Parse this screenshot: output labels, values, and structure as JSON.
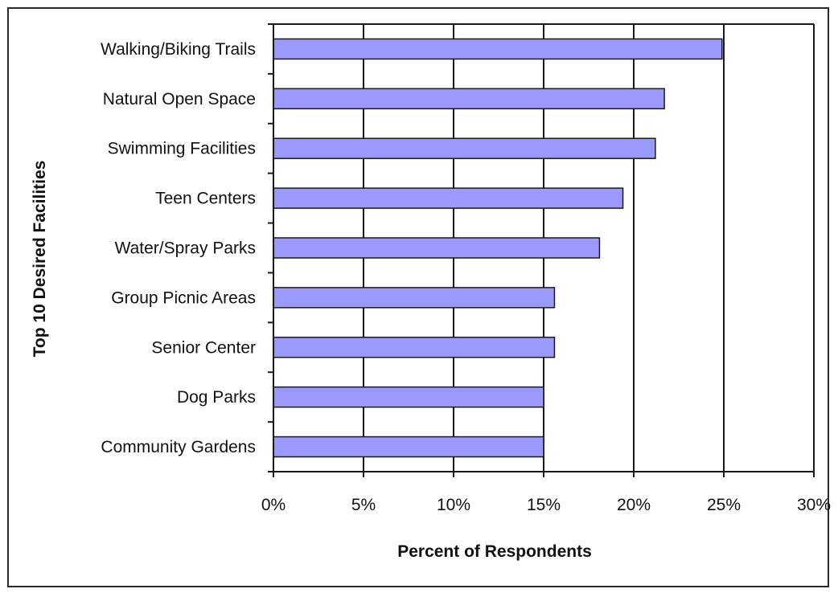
{
  "chart_data": {
    "type": "bar",
    "orientation": "horizontal",
    "categories": [
      "Walking/Biking Trails",
      "Natural Open Space",
      "Swimming Facilities",
      "Teen Centers",
      "Water/Spray Parks",
      "Group Picnic Areas",
      "Senior Center",
      "Dog Parks",
      "Community Gardens"
    ],
    "values": [
      24.9,
      21.7,
      21.2,
      19.4,
      18.1,
      15.6,
      15.6,
      15.0,
      15.0
    ],
    "xlabel": "Percent of Respondents",
    "ylabel": "Top 10 Desired Facilities",
    "xlim": [
      0,
      30
    ],
    "x_ticks": [
      "0%",
      "5%",
      "10%",
      "15%",
      "20%",
      "25%",
      "30%"
    ],
    "grid": "vertical",
    "legend": "none",
    "colors": {
      "bar_fill": "#9999ff",
      "bar_stroke": "#1a1a1a",
      "gridline": "#1a1a1a",
      "frame": "#2b2b2b"
    }
  }
}
